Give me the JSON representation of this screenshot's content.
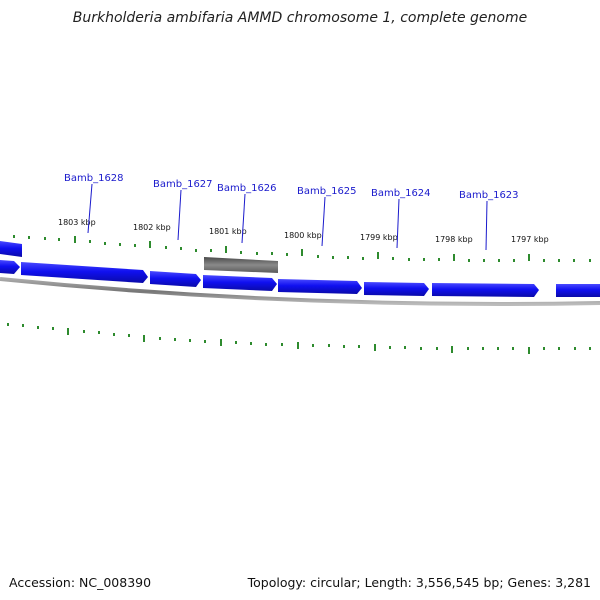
{
  "title": "Burkholderia ambifaria AMMD chromosome 1, complete genome",
  "footer": {
    "accession": "Accession: NC_008390",
    "summary": "Topology: circular; Length: 3,556,545 bp; Genes: 3,281"
  },
  "colors": {
    "gene": "#1010f0",
    "gene_highlight": "#2a2ad8",
    "selected": "#707070",
    "backbone": "#8a8a8a",
    "tick": "#2e8b2e",
    "label": "#1a1acc"
  },
  "gene_labels": [
    "Bamb_1628",
    "Bamb_1627",
    "Bamb_1626",
    "Bamb_1625",
    "Bamb_1624",
    "Bamb_1623"
  ],
  "kbp_labels": [
    "1803 kbp",
    "1802 kbp",
    "1801 kbp",
    "1800 kbp",
    "1799 kbp",
    "1798 kbp",
    "1797 kbp"
  ]
}
